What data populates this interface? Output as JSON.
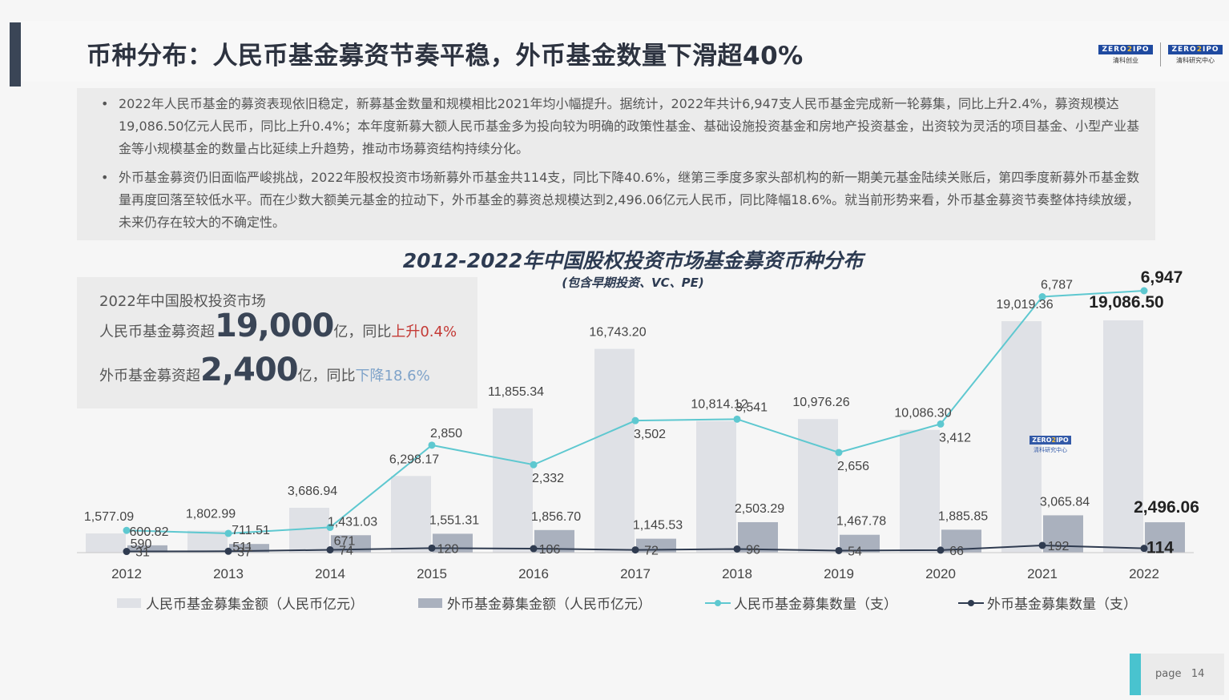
{
  "title": "币种分布：人民币基金募资节奏平稳，外币基金数量下滑超40%",
  "logos": [
    {
      "mark_left": "ZERO",
      "mark_right": "IPO",
      "text": "清科创业"
    },
    {
      "mark_left": "ZERO",
      "mark_right": "IPO",
      "text": "清科研究中心"
    }
  ],
  "bullets": [
    "2022年人民币基金的募资表现依旧稳定，新募基金数量和规模相比2021年均小幅提升。据统计，2022年共计6,947支人民币基金完成新一轮募集，同比上升2.4%，募资规模达19,086.50亿元人民币，同比上升0.4%；本年度新募大额人民币基金多为投向较为明确的政策性基金、基础设施投资基金和房地产投资基金，出资较为灵活的项目基金、小型产业基金等小规模基金的数量占比延续上升趋势，推动市场募资结构持续分化。",
    "外币基金募资仍旧面临严峻挑战，2022年股权投资市场新募外币基金共114支，同比下降40.6%，继第三季度多家头部机构的新一期美元基金陆续关账后，第四季度新募外币基金数量再度回落至较低水平。而在少数大额美元基金的拉动下，外币基金的募资总规模达到2,496.06亿元人民币，同比降幅18.6%。就当前形势来看，外币基金募资节奏整体持续放缓，未来仍存在较大的不确定性。"
  ],
  "bullet_symbol": "•",
  "summary": {
    "heading": "2022年中国股权投资市场",
    "rmb": {
      "prefix": "人民币基金募资超",
      "value": "19,000",
      "unit": "亿，同比",
      "change": "上升0.4%"
    },
    "fx": {
      "prefix": "外币基金募资超",
      "value": "2,400",
      "unit": "亿，同比",
      "change": "下降18.6%"
    }
  },
  "watermark": {
    "mark_left": "ZERO",
    "mark_right": "IPO",
    "text": "清科研究中心"
  },
  "page": {
    "label": "page",
    "number": "14"
  },
  "colors": {
    "rmb_bar": "#dfe1e6",
    "fx_bar": "#aab1be",
    "rmb_line": "#5ec8d0",
    "fx_line": "#2f3b50",
    "accent": "#49c3cf"
  },
  "chart_data": {
    "type": "bar",
    "title": "2012-2022年中国股权投资市场基金募资币种分布",
    "subtitle": "(包含早期投资、VC、PE)",
    "categories": [
      "2012",
      "2013",
      "2014",
      "2015",
      "2016",
      "2017",
      "2018",
      "2019",
      "2020",
      "2021",
      "2022"
    ],
    "series": [
      {
        "name": "人民币基金募集金额（人民币亿元）",
        "kind": "bar",
        "axis": "left",
        "values": [
          1577.09,
          1802.99,
          3686.94,
          6298.17,
          11855.34,
          16743.2,
          10814.12,
          10976.26,
          10086.3,
          19019.36,
          19086.5
        ],
        "labels": [
          "1,577.09",
          "1,802.99",
          "3,686.94",
          "6,298.17",
          "11,855.34",
          "16,743.20",
          "10,814.12",
          "10,976.26",
          "10,086.30",
          "19,019.36",
          "19,086.50"
        ]
      },
      {
        "name": "外币基金募集金额（人民币亿元）",
        "kind": "bar",
        "axis": "left",
        "values": [
          600.82,
          711.51,
          1431.03,
          1551.31,
          1856.7,
          1145.53,
          2503.29,
          1467.78,
          1885.85,
          3065.84,
          2496.06
        ],
        "labels": [
          "600.82",
          "711.51",
          "1,431.03",
          "1,551.31",
          "1,856.70",
          "1,145.53",
          "2,503.29",
          "1,467.78",
          "1,885.85",
          "3,065.84",
          "2,496.06"
        ]
      },
      {
        "name": "人民币基金募集数量（支）",
        "kind": "line",
        "axis": "right",
        "values": [
          590,
          511,
          671,
          2850,
          2332,
          3502,
          3541,
          2656,
          3412,
          6787,
          6947
        ],
        "labels": [
          "590",
          "511",
          "671",
          "2,850",
          "2,332",
          "3,502",
          "3,541",
          "2,656",
          "3,412",
          "6,787",
          "6,947"
        ]
      },
      {
        "name": "外币基金募集数量（支）",
        "kind": "line",
        "axis": "right",
        "values": [
          31,
          37,
          74,
          120,
          106,
          72,
          96,
          54,
          66,
          192,
          114
        ],
        "labels": [
          "31",
          "37",
          "74",
          "120",
          "106",
          "72",
          "96",
          "54",
          "66",
          "192",
          "114"
        ]
      }
    ],
    "legend_position": "bottom",
    "grid": false
  }
}
